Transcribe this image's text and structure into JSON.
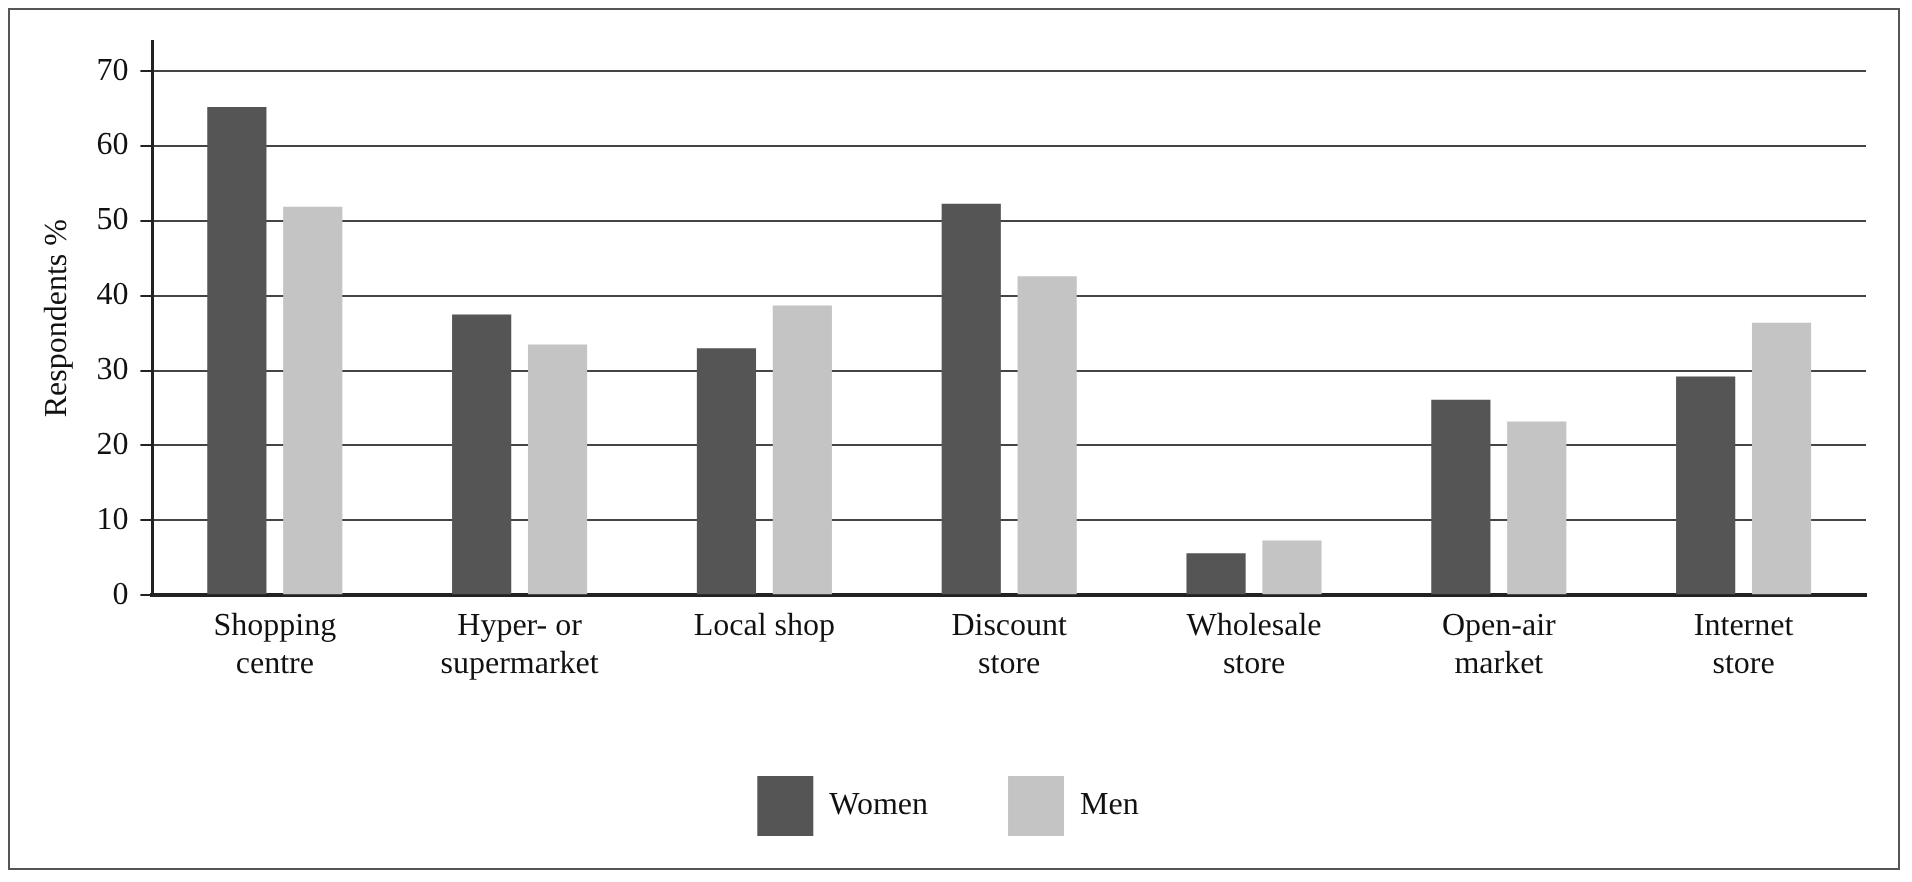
{
  "chart_data": {
    "type": "bar",
    "ylabel": "Respondents %",
    "categories": [
      "Shopping centre",
      "Hyper- or supermarket",
      "Local shop",
      "Discount store",
      "Wholesale store",
      "Open-air market",
      "Internet store"
    ],
    "series": [
      {
        "name": "Women",
        "color": "#555555",
        "values": [
          65.2,
          37.5,
          33,
          52.3,
          5.6,
          26.1,
          29.2
        ]
      },
      {
        "name": "Men",
        "color": "#c4c4c4",
        "values": [
          51.9,
          33.5,
          38.7,
          42.6,
          7.3,
          23.2,
          36.4
        ]
      }
    ],
    "ylim": [
      0,
      74
    ],
    "yticks": [
      0,
      10,
      20,
      30,
      40,
      50,
      60,
      70
    ],
    "grid": "y",
    "legend": "bottom"
  }
}
